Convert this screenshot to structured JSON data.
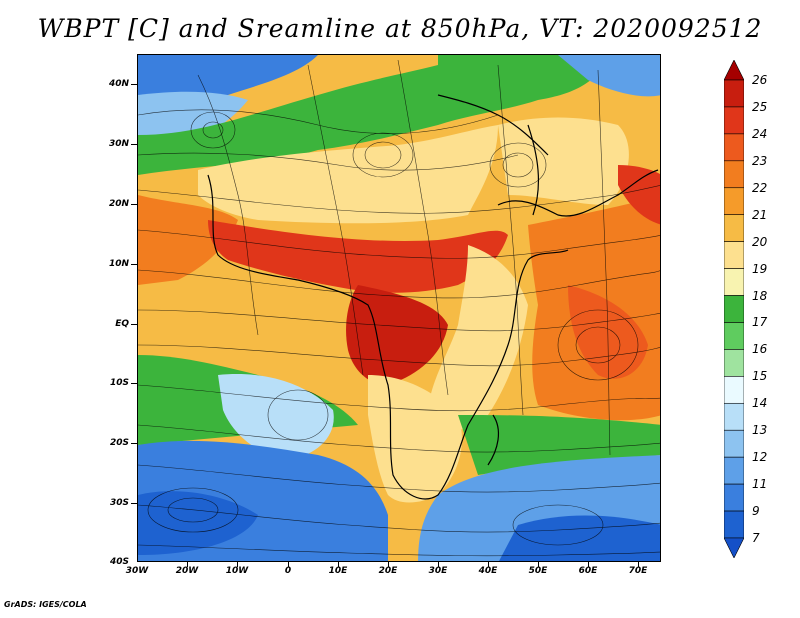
{
  "title": "WBPT [C] and Sreamline at 850hPa, VT: 2020092512",
  "footer": "GrADS: IGES/COLA",
  "map": {
    "variable": "WBPT [C]",
    "level": "850hPa",
    "valid_time": "2020092512",
    "streamlines": true,
    "lat_labels": [
      "40N",
      "30N",
      "20N",
      "10N",
      "EQ",
      "10S",
      "20S",
      "30S",
      "40S"
    ],
    "lon_labels": [
      "30W",
      "20W",
      "10W",
      "0",
      "10E",
      "20E",
      "30E",
      "40E",
      "50E",
      "60E",
      "70E"
    ]
  },
  "colorbar": {
    "levels": [
      "26",
      "25",
      "24",
      "23",
      "22",
      "21",
      "20",
      "19",
      "18",
      "17",
      "16",
      "15",
      "14",
      "13",
      "12",
      "11",
      "9",
      "7"
    ],
    "colors": [
      "#a50000",
      "#c81e0f",
      "#e0361a",
      "#ed5a1e",
      "#f27d1f",
      "#f59b2a",
      "#f6bb45",
      "#fde08f",
      "#f8f3b0",
      "#3cb43c",
      "#5fcc5f",
      "#9fe39f",
      "#eafaff",
      "#b8dff8",
      "#8dc3f0",
      "#5ea0e8",
      "#3a7fde",
      "#1e62d0",
      "#1450c8"
    ]
  }
}
